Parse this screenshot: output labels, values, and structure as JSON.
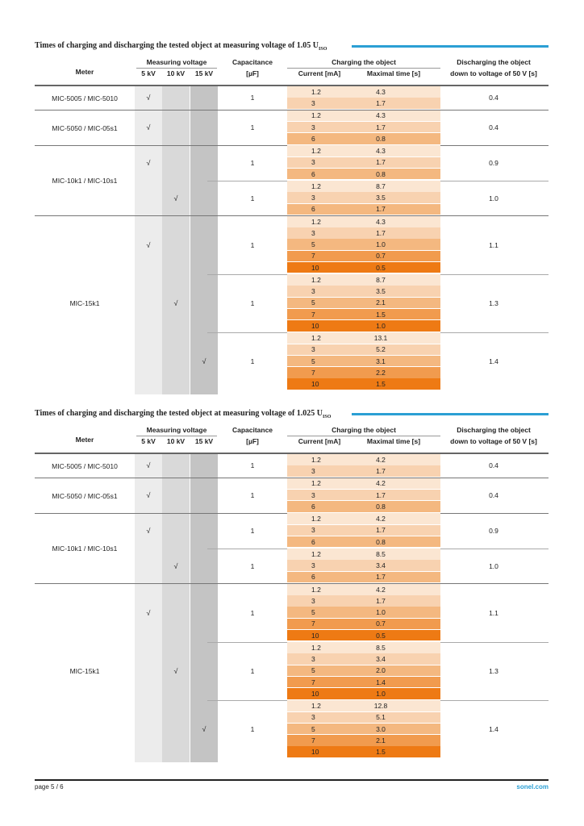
{
  "footer": {
    "page": "page 5 / 6",
    "brand": "sonel.com"
  },
  "headers": {
    "meter": "Meter",
    "measuring_voltage": "Measuring voltage",
    "v5": "5 kV",
    "v10": "10 kV",
    "v15": "15 kV",
    "capacitance": "Capacitance",
    "capacitance_unit": "[µF]",
    "charging": "Charging the object",
    "current": "Current [mA]",
    "max_time": "Maximal time [s]",
    "discharging": "Discharging the object",
    "discharging_sub": "down to voltage of 50 V [s]"
  },
  "check_mark": "√",
  "colors": {
    "accent": "#2b9fd4",
    "grey5": "#ececec",
    "grey10": "#d9d9d9",
    "grey15": "#c4c4c4",
    "bar_shades": [
      "#fbe6d2",
      "#f8d2b0",
      "#f4b880",
      "#f19b4e",
      "#ee7a14"
    ]
  },
  "sections": [
    {
      "title_main": "Times of charging and discharging the tested object at measuring voltage of 1.05 U",
      "title_sub": "ISO",
      "meters": [
        {
          "name": "MIC-5005 / MIC-5010",
          "groups": [
            {
              "voltage": 5,
              "capacitance": "1",
              "discharge": "0.4",
              "rows": [
                {
                  "current": "1.2",
                  "time": "4.3"
                },
                {
                  "current": "3",
                  "time": "1.7"
                }
              ]
            }
          ]
        },
        {
          "name": "MIC-5050 / MIC-05s1",
          "groups": [
            {
              "voltage": 5,
              "capacitance": "1",
              "discharge": "0.4",
              "rows": [
                {
                  "current": "1.2",
                  "time": "4.3"
                },
                {
                  "current": "3",
                  "time": "1.7"
                },
                {
                  "current": "6",
                  "time": "0.8"
                }
              ]
            }
          ]
        },
        {
          "name": "MIC-10k1 / MIC-10s1",
          "groups": [
            {
              "voltage": 5,
              "capacitance": "1",
              "discharge": "0.9",
              "rows": [
                {
                  "current": "1.2",
                  "time": "4.3"
                },
                {
                  "current": "3",
                  "time": "1.7"
                },
                {
                  "current": "6",
                  "time": "0.8"
                }
              ]
            },
            {
              "voltage": 10,
              "capacitance": "1",
              "discharge": "1.0",
              "rows": [
                {
                  "current": "1.2",
                  "time": "8.7"
                },
                {
                  "current": "3",
                  "time": "3.5"
                },
                {
                  "current": "6",
                  "time": "1.7"
                }
              ]
            }
          ]
        },
        {
          "name": "MIC-15k1",
          "groups": [
            {
              "voltage": 5,
              "capacitance": "1",
              "discharge": "1.1",
              "rows": [
                {
                  "current": "1.2",
                  "time": "4.3"
                },
                {
                  "current": "3",
                  "time": "1.7"
                },
                {
                  "current": "5",
                  "time": "1.0"
                },
                {
                  "current": "7",
                  "time": "0.7"
                },
                {
                  "current": "10",
                  "time": "0.5"
                }
              ]
            },
            {
              "voltage": 10,
              "capacitance": "1",
              "discharge": "1.3",
              "rows": [
                {
                  "current": "1.2",
                  "time": "8.7"
                },
                {
                  "current": "3",
                  "time": "3.5"
                },
                {
                  "current": "5",
                  "time": "2.1"
                },
                {
                  "current": "7",
                  "time": "1.5"
                },
                {
                  "current": "10",
                  "time": "1.0"
                }
              ]
            },
            {
              "voltage": 15,
              "capacitance": "1",
              "discharge": "1.4",
              "rows": [
                {
                  "current": "1.2",
                  "time": "13.1"
                },
                {
                  "current": "3",
                  "time": "5.2"
                },
                {
                  "current": "5",
                  "time": "3.1"
                },
                {
                  "current": "7",
                  "time": "2.2"
                },
                {
                  "current": "10",
                  "time": "1.5"
                }
              ]
            }
          ]
        }
      ]
    },
    {
      "title_main": "Times of charging and discharging the tested object at measuring voltage of 1.025 U",
      "title_sub": "ISO",
      "meters": [
        {
          "name": "MIC-5005 / MIC-5010",
          "groups": [
            {
              "voltage": 5,
              "capacitance": "1",
              "discharge": "0.4",
              "rows": [
                {
                  "current": "1.2",
                  "time": "4.2"
                },
                {
                  "current": "3",
                  "time": "1.7"
                }
              ]
            }
          ]
        },
        {
          "name": "MIC-5050 / MIC-05s1",
          "groups": [
            {
              "voltage": 5,
              "capacitance": "1",
              "discharge": "0.4",
              "rows": [
                {
                  "current": "1.2",
                  "time": "4.2"
                },
                {
                  "current": "3",
                  "time": "1.7"
                },
                {
                  "current": "6",
                  "time": "0.8"
                }
              ]
            }
          ]
        },
        {
          "name": "MIC-10k1 / MIC-10s1",
          "groups": [
            {
              "voltage": 5,
              "capacitance": "1",
              "discharge": "0.9",
              "rows": [
                {
                  "current": "1.2",
                  "time": "4.2"
                },
                {
                  "current": "3",
                  "time": "1.7"
                },
                {
                  "current": "6",
                  "time": "0.8"
                }
              ]
            },
            {
              "voltage": 10,
              "capacitance": "1",
              "discharge": "1.0",
              "rows": [
                {
                  "current": "1.2",
                  "time": "8.5"
                },
                {
                  "current": "3",
                  "time": "3.4"
                },
                {
                  "current": "6",
                  "time": "1.7"
                }
              ]
            }
          ]
        },
        {
          "name": "MIC-15k1",
          "groups": [
            {
              "voltage": 5,
              "capacitance": "1",
              "discharge": "1.1",
              "rows": [
                {
                  "current": "1.2",
                  "time": "4.2"
                },
                {
                  "current": "3",
                  "time": "1.7"
                },
                {
                  "current": "5",
                  "time": "1.0"
                },
                {
                  "current": "7",
                  "time": "0.7"
                },
                {
                  "current": "10",
                  "time": "0.5"
                }
              ]
            },
            {
              "voltage": 10,
              "capacitance": "1",
              "discharge": "1.3",
              "rows": [
                {
                  "current": "1.2",
                  "time": "8.5"
                },
                {
                  "current": "3",
                  "time": "3.4"
                },
                {
                  "current": "5",
                  "time": "2.0"
                },
                {
                  "current": "7",
                  "time": "1.4"
                },
                {
                  "current": "10",
                  "time": "1.0"
                }
              ]
            },
            {
              "voltage": 15,
              "capacitance": "1",
              "discharge": "1.4",
              "rows": [
                {
                  "current": "1.2",
                  "time": "12.8"
                },
                {
                  "current": "3",
                  "time": "5.1"
                },
                {
                  "current": "5",
                  "time": "3.0"
                },
                {
                  "current": "7",
                  "time": "2.1"
                },
                {
                  "current": "10",
                  "time": "1.5"
                }
              ]
            }
          ]
        }
      ]
    }
  ]
}
